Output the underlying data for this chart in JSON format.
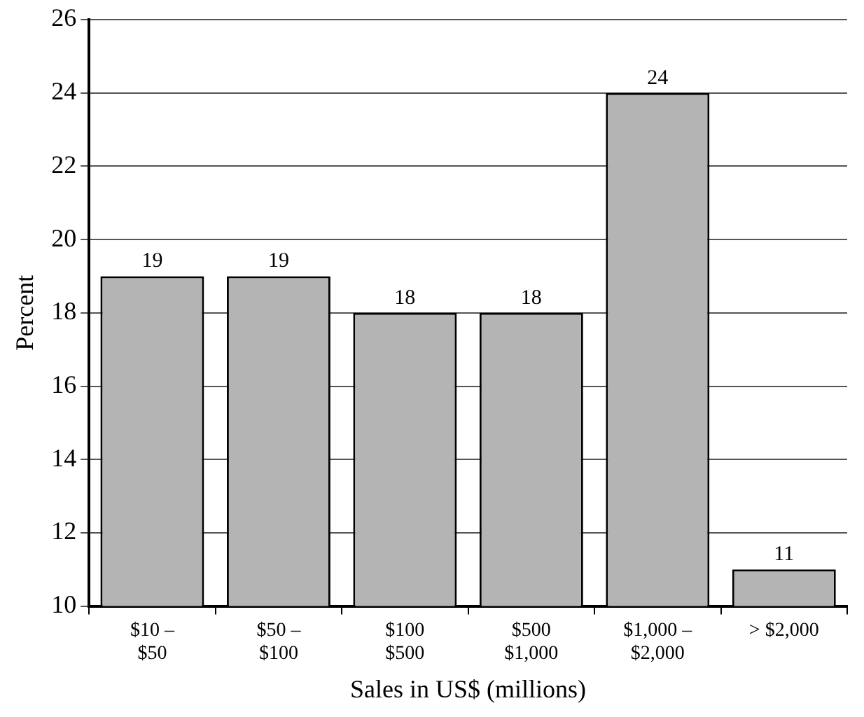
{
  "chart_data": {
    "type": "bar",
    "xlabel": "Sales in US$ (millions)",
    "ylabel": "Percent",
    "categories": [
      "$10 –\n$50",
      "$50 –\n$100",
      "$100\n$500",
      "$500\n$1,000",
      "$1,000 –\n$2,000",
      "> $2,000"
    ],
    "values": [
      19,
      19,
      18,
      18,
      24,
      11
    ],
    "color": "#b4b4b4",
    "ylim": [
      10,
      26
    ],
    "yticks": [
      10,
      12,
      14,
      16,
      18,
      20,
      22,
      24,
      26
    ],
    "grid": "y",
    "data_labels": true,
    "legend": false
  }
}
